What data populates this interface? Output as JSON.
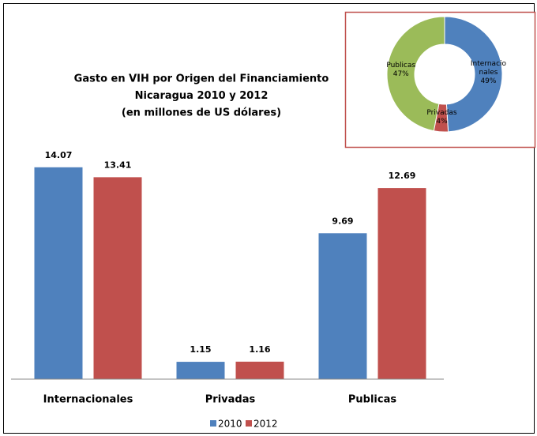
{
  "chart_data": [
    {
      "type": "bar",
      "title": [
        "Gasto en VIH por Origen del Financiamiento",
        "Nicaragua 2010 y 2012",
        "(en millones de US dólares)"
      ],
      "categories": [
        "Internacionales",
        "Privadas",
        "Publicas"
      ],
      "series": [
        {
          "name": "2010",
          "color": "#4f81bd",
          "values": [
            14.07,
            1.15,
            9.69
          ]
        },
        {
          "name": "2012",
          "color": "#c0504d",
          "values": [
            13.41,
            1.16,
            12.69
          ]
        }
      ],
      "ylim": [
        0,
        16
      ],
      "legend": "bottom"
    },
    {
      "type": "pie",
      "categories": [
        "Internacionales",
        "Privadas",
        "Publicas"
      ],
      "values": [
        49,
        4,
        47
      ],
      "value_labels": [
        "49%",
        "4%",
        "47%"
      ],
      "colors": [
        "#4f81bd",
        "#c0504d",
        "#9bbb59"
      ],
      "donut": true
    }
  ]
}
